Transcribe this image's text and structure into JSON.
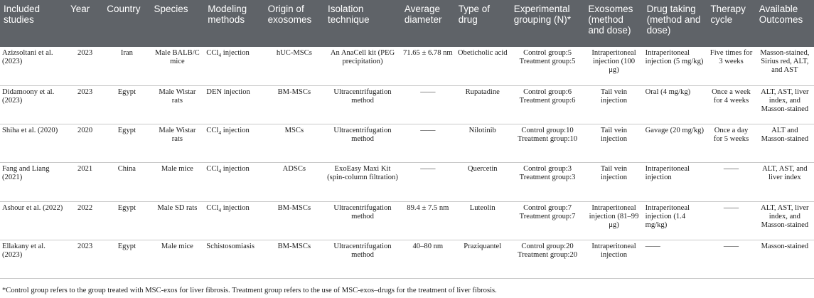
{
  "headers": [
    "Included studies",
    "Year",
    "Country",
    "Species",
    "Modeling methods",
    "Origin of exosomes",
    "Isolation technique",
    "Average diameter",
    "Type of drug",
    "Experimental grouping (N)*",
    "Exosomes (method and dose)",
    "Drug taking (method and dose)",
    "Therapy cycle",
    "Available Outcomes"
  ],
  "rows": [
    {
      "study": "Azizsoltani et al. (2023)",
      "year": "2023",
      "country": "Iran",
      "species": "Male BALB/C mice",
      "model_pre": "CCl",
      "model_sub": "4",
      "model_post": " injection",
      "origin": "hUC-MSCs",
      "isolation": "An AnaCell kit (PEG precipitation)",
      "diameter": "71.65 ± 6.78 nm",
      "drug": "Obeticholic acid",
      "control": "Control group:5",
      "treatment": "Treatment group:5",
      "exosomes": "Intraperitoneal injection (100 μg)",
      "drug_taking": "Intraperitoneal injection (5 mg/kg)",
      "cycle": "Five times for 3 weeks",
      "outcomes": "Masson-stained, Sirius red, ALT, and AST"
    },
    {
      "study": "Didamoony et al. (2023)",
      "year": "2023",
      "country": "Egypt",
      "species": "Male Wistar rats",
      "model_pre": "DEN injection",
      "model_sub": "",
      "model_post": "",
      "origin": "BM-MSCs",
      "isolation": "Ultracentrifugation method",
      "diameter": "——",
      "drug": "Rupatadine",
      "control": "Control group:6",
      "treatment": "Treatment group:6",
      "exosomes": "Tail vein injection",
      "drug_taking": "Oral (4 mg/kg)",
      "cycle": "Once a week for 4 weeks",
      "outcomes": "ALT, AST, liver index, and Masson-stained"
    },
    {
      "study": "Shiha et al. (2020)",
      "year": "2020",
      "country": "Egypt",
      "species": "Male Wistar rats",
      "model_pre": "CCl",
      "model_sub": "4",
      "model_post": " injection",
      "origin": "MSCs",
      "isolation": "Ultracentrifugation method",
      "diameter": "——",
      "drug": "Nilotinib",
      "control": "Control group:10",
      "treatment": "Treatment group:10",
      "exosomes": "Tail vein injection",
      "drug_taking": "Gavage (20 mg/kg)",
      "cycle": "Once a day for 5 weeks",
      "outcomes": "ALT and Masson-stained"
    },
    {
      "study": "Fang and Liang (2021)",
      "year": "2021",
      "country": "China",
      "species": "Male mice",
      "model_pre": "CCl",
      "model_sub": "4",
      "model_post": " injection",
      "origin": "ADSCs",
      "isolation": "ExoEasy Maxi Kit (spin-column filtration)",
      "diameter": "——",
      "drug": "Quercetin",
      "control": "Control group:3",
      "treatment": "Treatment group:3",
      "exosomes": "Tail vein injection",
      "drug_taking": "Intraperitoneal injection",
      "cycle": "——",
      "outcomes": "ALT, AST, and liver index"
    },
    {
      "study": "Ashour et al. (2022)",
      "year": "2022",
      "country": "Egypt",
      "species": "Male SD rats",
      "model_pre": "CCl",
      "model_sub": "4",
      "model_post": " injection",
      "origin": "BM-MSCs",
      "isolation": "Ultracentrifugation method",
      "diameter": "89.4 ± 7.5 nm",
      "drug": "Luteolin",
      "control": "Control group:7",
      "treatment": "Treatment group:7",
      "exosomes": "Intraperitoneal injection (81–99 μg)",
      "drug_taking": "Intraperitoneal injection (1.4 mg/kg)",
      "cycle": "——",
      "outcomes": "ALT, AST, liver index, and Masson-stained"
    },
    {
      "study": "Ellakany et al. (2023)",
      "year": "2023",
      "country": "Egypt",
      "species": "Male mice",
      "model_pre": "Schistosomiasis",
      "model_sub": "",
      "model_post": "",
      "origin": "BM-MSCs",
      "isolation": "Ultracentrifugation method",
      "diameter": "40–80 nm",
      "drug": "Praziquantel",
      "control": "Control group:20",
      "treatment": "Treatment group:20",
      "exosomes": "Intraperitoneal injection",
      "drug_taking": "——",
      "cycle": "——",
      "outcomes": "Masson-stained"
    }
  ],
  "footnote": "*Control group refers to the group treated with MSC-exos for liver fibrosis. Treatment group refers to the use of MSC-exos–drugs for the treatment of liver fibrosis."
}
